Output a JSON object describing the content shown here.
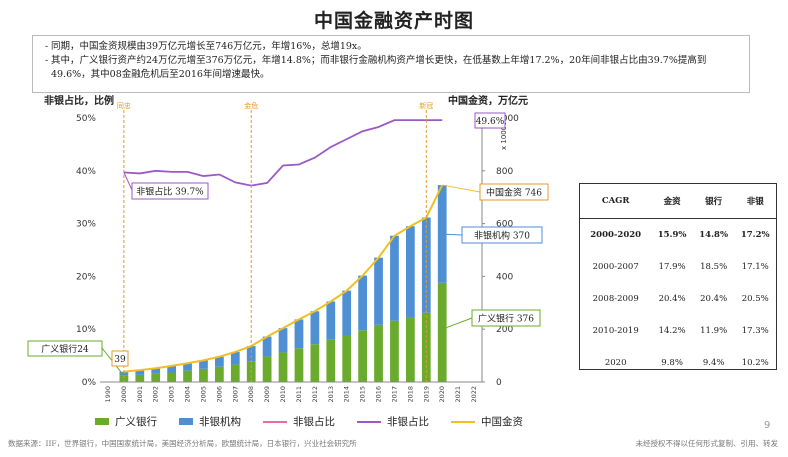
{
  "title": "中国金融资产时图",
  "notes": [
    "同期，中国金资规模由39万亿元增长至746万亿元，年增16%，总增19x。",
    "其中，广义银行资产约24万亿元增至376万亿元，年增14.8%；而非银行金融机构资产增长更快，在低基数上年增17.2%，20年间非银占比由39.7%提高到49.6%，其中08金融危机后至2016年间增速最快。"
  ],
  "axis_left_title": "非银占比，比例",
  "axis_right_title": "中国金资，万亿元",
  "axis_right_multiplier": "x 10000",
  "colors": {
    "bank": "#6aab2e",
    "nonbank": "#4f8fd4",
    "share": "#9b59c8",
    "total": "#f0c020",
    "orange": "#e39a2e"
  },
  "cagr_table": {
    "headers": [
      "CAGR",
      "金资",
      "银行",
      "非银"
    ],
    "rows": [
      [
        "2000-2020",
        "15.9%",
        "14.8%",
        "17.2%"
      ],
      [
        "2000-2007",
        "17.9%",
        "18.5%",
        "17.1%"
      ],
      [
        "2008-2009",
        "20.4%",
        "20.4%",
        "20.5%"
      ],
      [
        "2010-2019",
        "14.2%",
        "11.9%",
        "17.3%"
      ],
      [
        "2020",
        "9.8%",
        "9.4%",
        "10.2%"
      ]
    ]
  },
  "legend": [
    "广义银行",
    "非银机构",
    "非银占比",
    "非银占比",
    "中国金资"
  ],
  "footer_left": "数据来源：IIF，世界银行，中国国家统计局，美国经济分析局，欧盟统计局，日本银行，兴业社会研究所",
  "footer_right": "未经授权不得以任何形式复制、引用、转发",
  "page_number": "9",
  "chart_data": {
    "type": "bar",
    "x": [
      "1990",
      "2000",
      "2001",
      "2002",
      "2003",
      "2004",
      "2005",
      "2006",
      "2007",
      "2008",
      "2009",
      "2010",
      "2011",
      "2012",
      "2013",
      "2014",
      "2015",
      "2016",
      "2017",
      "2018",
      "2019",
      "2020",
      "2021",
      "2022"
    ],
    "series": [
      {
        "name": "广义银行",
        "values": [
          null,
          24,
          27,
          31,
          36,
          43,
          50,
          58,
          66,
          79,
          97,
          112,
          128,
          143,
          160,
          176,
          196,
          217,
          232,
          246,
          262,
          376,
          null,
          null
        ]
      },
      {
        "name": "非银机构",
        "values": [
          null,
          15,
          18,
          21,
          25,
          28,
          32,
          38,
          48,
          57,
          75,
          92,
          109,
          125,
          145,
          170,
          207,
          254,
          322,
          344,
          361,
          370,
          null,
          null
        ]
      },
      {
        "name": "非银占比",
        "values": [
          null,
          39.7,
          39.5,
          40.0,
          39.8,
          39.8,
          39.0,
          39.3,
          37.8,
          37.2,
          37.7,
          41.0,
          41.2,
          42.5,
          44.5,
          46.0,
          47.5,
          48.3,
          49.6,
          49.6,
          49.6,
          49.6,
          null,
          null
        ]
      },
      {
        "name": "中国金资",
        "values": [
          null,
          39,
          45,
          52,
          61,
          71,
          82,
          96,
          114,
          136,
          172,
          204,
          237,
          268,
          305,
          346,
          403,
          471,
          554,
          590,
          623,
          746,
          null,
          null
        ]
      }
    ],
    "annotations": {
      "periods": [
        "同忠",
        "金危",
        "新冠"
      ],
      "labels": {
        "share_start": "非银占比 39.7%",
        "share_end": "49.6%",
        "total_end": "中国金资 746",
        "nonbank_end": "非银机构 370",
        "bank_end": "广义银行 376",
        "bank_start": "广义银行24",
        "total_start": "39"
      }
    },
    "ylim_left": [
      0,
      50
    ],
    "ylim_right": [
      0,
      1000
    ],
    "yticks_left": [
      "0%",
      "10%",
      "20%",
      "30%",
      "40%",
      "50%"
    ],
    "yticks_right": [
      "0",
      "200",
      "400",
      "600",
      "800",
      "1000"
    ]
  }
}
